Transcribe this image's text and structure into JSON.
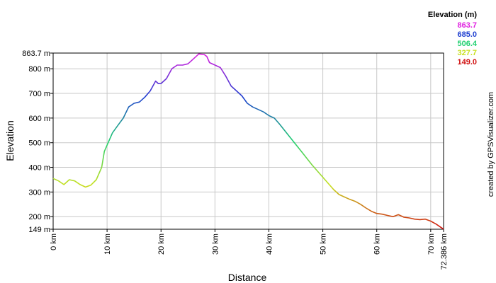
{
  "chart_data": {
    "type": "line",
    "title": "",
    "xlabel": "Distance",
    "ylabel": "Elevation",
    "xlim": [
      0,
      72.386
    ],
    "ylim": [
      149.0,
      863.7
    ],
    "grid": true,
    "x_ticks": [
      {
        "value": 0,
        "label": "0 km"
      },
      {
        "value": 10,
        "label": "10 km"
      },
      {
        "value": 20,
        "label": "20 km"
      },
      {
        "value": 30,
        "label": "30 km"
      },
      {
        "value": 40,
        "label": "40 km"
      },
      {
        "value": 50,
        "label": "50 km"
      },
      {
        "value": 60,
        "label": "60 km"
      },
      {
        "value": 70,
        "label": "70 km"
      },
      {
        "value": 72.386,
        "label": "72.386 km"
      }
    ],
    "y_ticks": [
      {
        "value": 149.0,
        "label": "149 m"
      },
      {
        "value": 200,
        "label": "200 m"
      },
      {
        "value": 300,
        "label": "300 m"
      },
      {
        "value": 400,
        "label": "400 m"
      },
      {
        "value": 500,
        "label": "500 m"
      },
      {
        "value": 600,
        "label": "600 m"
      },
      {
        "value": 700,
        "label": "700 m"
      },
      {
        "value": 800,
        "label": "800 m"
      },
      {
        "value": 863.7,
        "label": "863.7 m"
      }
    ],
    "color_legend": {
      "title": "Elevation (m)",
      "entries": [
        {
          "label": "863.7",
          "color": "#e020e0"
        },
        {
          "label": "685.0",
          "color": "#1f3fd0"
        },
        {
          "label": "506.4",
          "color": "#20d070"
        },
        {
          "label": "327.7",
          "color": "#c8e020"
        },
        {
          "label": "149.0",
          "color": "#d01010"
        }
      ]
    },
    "series": [
      {
        "x": [
          0,
          1,
          2,
          3,
          4,
          5,
          6,
          7,
          8,
          9,
          9.5,
          10,
          11,
          12,
          13,
          14,
          15,
          16,
          17,
          18,
          19,
          19.5,
          20,
          21,
          22,
          23,
          24,
          25,
          26,
          27,
          28,
          28.5,
          29,
          30,
          31,
          32,
          33,
          34,
          35,
          36,
          37,
          38,
          39,
          40,
          41,
          42,
          44,
          46,
          48,
          50,
          52,
          53,
          54,
          55,
          56,
          57,
          58,
          59,
          60,
          61,
          62,
          63,
          64,
          65,
          66,
          67,
          68,
          69,
          70,
          71,
          72,
          72.386
        ],
        "y": [
          355,
          345,
          330,
          350,
          345,
          330,
          320,
          328,
          350,
          400,
          465,
          490,
          540,
          570,
          600,
          645,
          660,
          665,
          685,
          710,
          750,
          740,
          740,
          760,
          800,
          815,
          815,
          820,
          840,
          860,
          858,
          850,
          825,
          815,
          805,
          770,
          730,
          710,
          690,
          660,
          645,
          635,
          625,
          610,
          600,
          575,
          520,
          465,
          410,
          360,
          310,
          290,
          280,
          270,
          262,
          250,
          235,
          222,
          213,
          210,
          205,
          200,
          208,
          198,
          195,
          190,
          188,
          190,
          182,
          170,
          155,
          150
        ]
      }
    ]
  },
  "watermark": "created by GPSVisualizer.com"
}
